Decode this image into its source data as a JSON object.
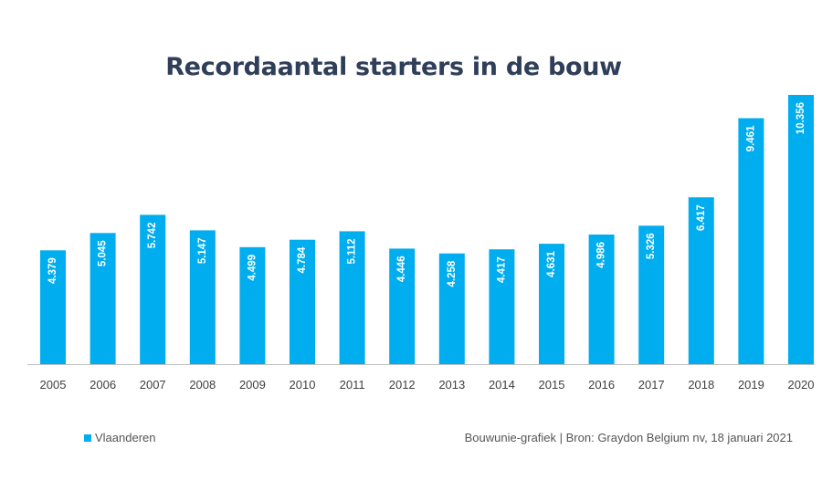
{
  "chart_data": {
    "type": "bar",
    "title": "Recordaantal starters in de bouw",
    "categories": [
      "2005",
      "2006",
      "2007",
      "2008",
      "2009",
      "2010",
      "2011",
      "2012",
      "2013",
      "2014",
      "2015",
      "2016",
      "2017",
      "2018",
      "2019",
      "2020"
    ],
    "series": [
      {
        "name": "Vlaanderen",
        "values": [
          4379,
          5045,
          5742,
          5147,
          4499,
          4784,
          5112,
          4446,
          4258,
          4417,
          4631,
          4986,
          5326,
          6417,
          9461,
          10356
        ],
        "labels": [
          "4.379",
          "5.045",
          "5.742",
          "5.147",
          "4.499",
          "4.784",
          "5.112",
          "4.446",
          "4.258",
          "4.417",
          "4.631",
          "4.986",
          "5.326",
          "6.417",
          "9.461",
          "10.356"
        ]
      }
    ],
    "ylim": [
      0,
      10356
    ],
    "grid": false,
    "legend_position": "bottom-left",
    "colors": {
      "bar": "#00adef",
      "title": "#2f3e59",
      "axis": "#bfbfbf",
      "tick_text": "#404040",
      "data_label": "#ffffff"
    },
    "source": "Bouwunie-grafiek | Bron: Graydon Belgium nv, 18 januari 2021"
  }
}
